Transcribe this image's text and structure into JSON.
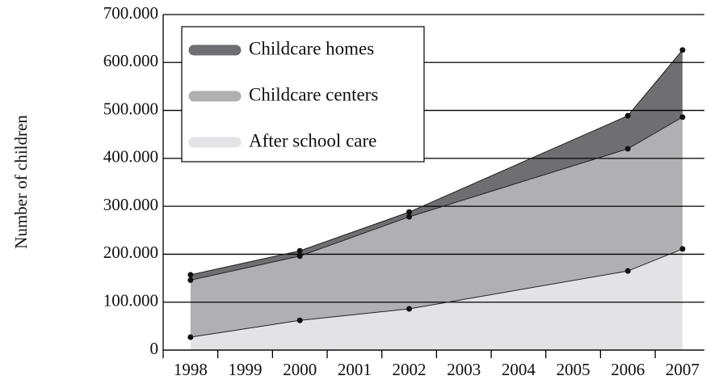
{
  "chart_data": {
    "type": "stacked_area",
    "y_label": "Number of children",
    "x": [
      1998,
      2000,
      2002,
      2006,
      2007
    ],
    "series": [
      {
        "name": "After school care",
        "color": "#e3e3e5",
        "values": [
          27000,
          62000,
          86000,
          165000,
          211000
        ]
      },
      {
        "name": "Childcare centers",
        "color": "#b0b0b3",
        "values": [
          119000,
          134000,
          192000,
          255000,
          275000
        ]
      },
      {
        "name": "Childcare homes",
        "color": "#6f6f72",
        "values": [
          11000,
          11000,
          10000,
          69000,
          140000
        ]
      }
    ],
    "xlim": [
      1997.5,
      2007.4
    ],
    "xticks": [
      1998,
      1999,
      2000,
      2001,
      2002,
      2003,
      2004,
      2005,
      2006,
      2007
    ],
    "ylim": [
      0,
      700000
    ],
    "yticks": [
      0,
      {
        "value": 100000,
        "label": "100.000"
      },
      {
        "value": 200000,
        "label": "200.000"
      },
      {
        "value": 300000,
        "label": "300.000"
      },
      {
        "value": 400000,
        "label": "400.000"
      },
      {
        "value": 500000,
        "label": "500.000"
      },
      {
        "value": 600000,
        "label": "600.000"
      },
      {
        "value": 700000,
        "label": "700.000"
      }
    ],
    "grid": true,
    "legend": "upper left"
  }
}
